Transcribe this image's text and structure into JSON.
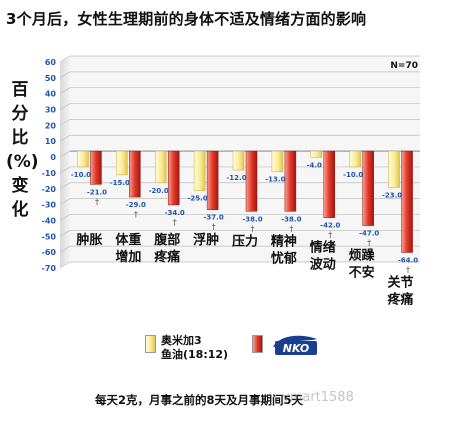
{
  "title": "3个月后，女性生理期前的身体不适及情绪方面的影响",
  "ylabel_chars": [
    "百",
    "分",
    "比",
    "(%)",
    "变",
    "化"
  ],
  "sample_size": "N=70",
  "legend": {
    "series1_line1": "奥米加3",
    "series1_line2": "鱼油(18:12)",
    "logo_text": "NKO"
  },
  "footnote": "每天2克，月事之前的8天及月事期间5天",
  "watermark": "ymart1588",
  "colors": {
    "series1_light": "#fbf3b3",
    "series1_dark": "#eed65c",
    "series2_light": "#f07060",
    "series2_dark": "#b81a12",
    "grid": "#bdbdbd"
  },
  "chart_data": {
    "type": "bar",
    "title": "3个月后，女性生理期前的身体不适及情绪方面的影响",
    "ylabel": "百分比(%)变化",
    "ylim": [
      -70,
      60
    ],
    "yticks": [
      60,
      50,
      40,
      30,
      20,
      10,
      0,
      -10,
      -20,
      -30,
      -40,
      -50,
      -60,
      -70
    ],
    "grid": true,
    "categories": [
      "肿胀",
      "体重增加",
      "腹部疼痛",
      "浮肿",
      "压力",
      "精神忧郁",
      "情绪波动",
      "烦躁不安",
      "关节疼痛"
    ],
    "category_lines": [
      [
        "肿胀"
      ],
      [
        "体重",
        "增加"
      ],
      [
        "腹部",
        "疼痛"
      ],
      [
        "浮肿"
      ],
      [
        "压力"
      ],
      [
        "精神",
        "忧郁"
      ],
      [
        "情绪",
        "波动"
      ],
      [
        "烦躁",
        "不安"
      ],
      [
        "关节",
        "疼痛"
      ]
    ],
    "series": [
      {
        "name": "奥米加3鱼油(18:12)",
        "values": [
          -10.0,
          -15.0,
          -20.0,
          -25.0,
          -12.0,
          -13.0,
          -4.0,
          -10.0,
          -23.0
        ],
        "labels": [
          "-10.0",
          "-15.0",
          "-20.0",
          "-25.0",
          "-12.0",
          "-13.0",
          "-4.0",
          "-10.0",
          "-23.0"
        ]
      },
      {
        "name": "NKO",
        "values": [
          -21.0,
          -29.0,
          -34.0,
          -37.0,
          -38.0,
          -38.0,
          -42.0,
          -47.0,
          -64.0
        ],
        "labels": [
          "-21.0",
          "-29.0",
          "-34.0",
          "-37.0",
          "-38.0",
          "-38.0",
          "-42.0",
          "-47.0",
          "-64.0"
        ]
      }
    ],
    "significance_marks": [
      "†",
      "†",
      "†",
      "†",
      "†",
      "†",
      "†",
      "†",
      "†"
    ]
  }
}
